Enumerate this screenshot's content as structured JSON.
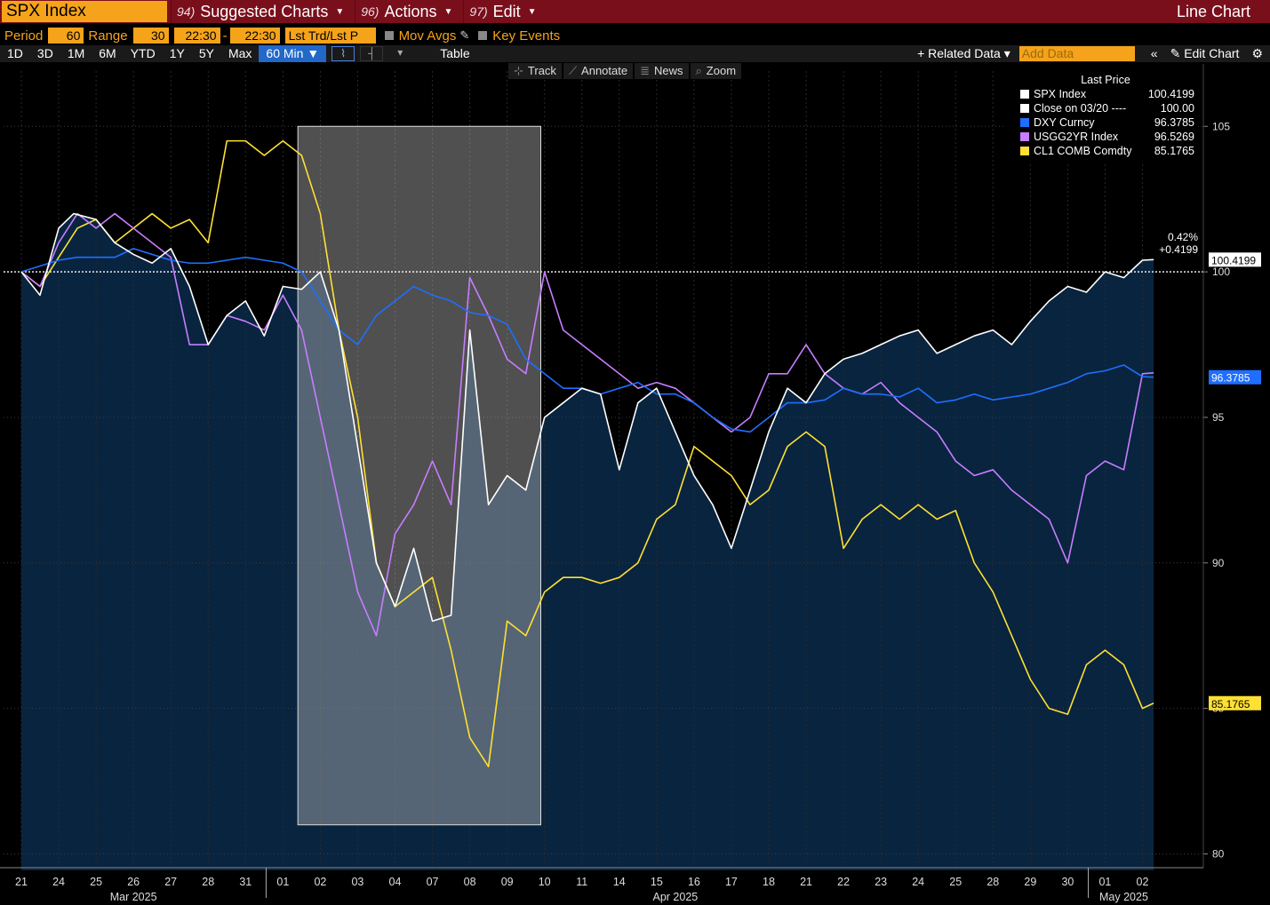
{
  "topbar": {
    "ticker": "SPX Index",
    "menus": [
      {
        "num": "94)",
        "label": "Suggested Charts"
      },
      {
        "num": "96)",
        "label": "Actions"
      },
      {
        "num": "97)",
        "label": "Edit"
      }
    ],
    "chart_type": "Line Chart"
  },
  "controls": {
    "period_label": "Period",
    "period_value": "60",
    "range_label": "Range",
    "range_value": "30",
    "time_from": "22:30",
    "time_to": "22:30",
    "price_mode": "Lst Trd/Lst P",
    "mov_avgs": "Mov Avgs",
    "key_events": "Key Events"
  },
  "ranges": [
    "1D",
    "3D",
    "1M",
    "6M",
    "YTD",
    "1Y",
    "5Y",
    "Max"
  ],
  "interval": "60 Min ▼",
  "table_label": "Table",
  "related_data": "+ Related Data ▾",
  "add_data_placeholder": "Add Data",
  "edit_chart": "Edit Chart",
  "tools": [
    {
      "icon": "crosshair-icon",
      "glyph": "⊹",
      "label": "Track"
    },
    {
      "icon": "annotate-icon",
      "glyph": "⟋",
      "label": "Annotate"
    },
    {
      "icon": "news-icon",
      "glyph": "≣",
      "label": "News"
    },
    {
      "icon": "zoom-icon",
      "glyph": "⌕",
      "label": "Zoom"
    }
  ],
  "legend": {
    "header": "Last Price",
    "items": [
      {
        "name": "SPX Index",
        "value": "100.4199",
        "color": "#ffffff"
      },
      {
        "name": "Close on 03/20 ---- ",
        "value": "100.00",
        "color": "#ffffff"
      },
      {
        "name": "DXY Curncy",
        "value": "96.3785",
        "color": "#1e6fff"
      },
      {
        "name": "USGG2YR Index",
        "value": "96.5269",
        "color": "#c77dff"
      },
      {
        "name": "CL1 COMB Comdty",
        "value": "85.1765",
        "color": "#ffe033"
      }
    ]
  },
  "change_labels": {
    "pct": "0.42%",
    "abs": "+0.4199"
  },
  "chart_data": {
    "type": "line",
    "ylim": [
      79.5,
      106.5
    ],
    "yticks": [
      80,
      85,
      90,
      95,
      100,
      105
    ],
    "reference_line": 100,
    "x_days": [
      "21",
      "24",
      "25",
      "26",
      "27",
      "28",
      "31",
      "01",
      "02",
      "03",
      "04",
      "07",
      "08",
      "09",
      "10",
      "11",
      "14",
      "15",
      "16",
      "17",
      "18",
      "21",
      "22",
      "23",
      "24",
      "25",
      "28",
      "29",
      "30",
      "01",
      "02"
    ],
    "months": [
      {
        "label": "Mar 2025",
        "day_index": 3
      },
      {
        "label": "Apr 2025",
        "day_index": 17.5
      },
      {
        "label": "May 2025",
        "day_index": 29.5
      }
    ],
    "highlight_days": [
      7.4,
      13.9
    ],
    "highlight_y": [
      81,
      105
    ],
    "last_labels": [
      {
        "value": "100.4199",
        "y": 100.42,
        "bg": "#ffffff",
        "fg": "#000000"
      },
      {
        "value": "96.3785",
        "y": 96.38,
        "bg": "#1e6fff",
        "fg": "#ffffff"
      },
      {
        "value": "85.1765",
        "y": 85.18,
        "bg": "#ffe033",
        "fg": "#000000"
      }
    ],
    "series": [
      {
        "name": "SPX Index",
        "color": "#ffffff",
        "fill": true,
        "x": [
          0,
          0.5,
          1,
          1.4,
          2,
          2.5,
          3,
          3.5,
          4,
          4.5,
          5,
          5.5,
          6,
          6.5,
          7,
          7.5,
          8,
          8.5,
          9,
          9.5,
          10,
          10.5,
          11,
          11.5,
          12,
          12.5,
          13,
          13.5,
          14,
          14.5,
          15,
          15.5,
          16,
          16.5,
          17,
          17.5,
          18,
          18.5,
          19,
          19.5,
          20,
          20.5,
          21,
          21.5,
          22,
          22.5,
          23,
          23.5,
          24,
          24.5,
          25,
          25.5,
          26,
          26.5,
          27,
          27.5,
          28,
          28.5,
          29,
          29.5,
          30,
          30.3
        ],
        "y": [
          100,
          99.2,
          101.5,
          102,
          101.8,
          101,
          100.6,
          100.3,
          100.8,
          99.5,
          97.5,
          98.5,
          99,
          97.8,
          99.5,
          99.4,
          100,
          98,
          94,
          90,
          88.5,
          90.5,
          88,
          88.2,
          98,
          92,
          93,
          92.5,
          95,
          95.5,
          96,
          95.8,
          93.2,
          95.5,
          96,
          94.5,
          93,
          92,
          90.5,
          92.5,
          94.5,
          96,
          95.5,
          96.5,
          97,
          97.2,
          97.5,
          97.8,
          98,
          97.2,
          97.5,
          97.8,
          98,
          97.5,
          98.3,
          99,
          99.5,
          99.3,
          100,
          99.8,
          100.4,
          100.42
        ]
      },
      {
        "name": "DXY Curncy",
        "color": "#1e6fff",
        "fill": false,
        "x": [
          0,
          0.5,
          1,
          1.5,
          2,
          2.5,
          3,
          3.5,
          4,
          4.5,
          5,
          5.5,
          6,
          6.5,
          7,
          7.5,
          8,
          8.5,
          9,
          9.5,
          10,
          10.5,
          11,
          11.5,
          12,
          12.5,
          13,
          13.5,
          14,
          14.5,
          15,
          15.5,
          16,
          16.5,
          17,
          17.5,
          18,
          18.5,
          19,
          19.5,
          20,
          20.5,
          21,
          21.5,
          22,
          22.5,
          23,
          23.5,
          24,
          24.5,
          25,
          25.5,
          26,
          26.5,
          27,
          27.5,
          28,
          28.5,
          29,
          29.5,
          30,
          30.3
        ],
        "y": [
          100,
          100.2,
          100.4,
          100.5,
          100.5,
          100.5,
          100.8,
          100.6,
          100.4,
          100.3,
          100.3,
          100.4,
          100.5,
          100.4,
          100.3,
          100,
          99,
          98,
          97.5,
          98.5,
          99,
          99.5,
          99.2,
          99,
          98.6,
          98.5,
          98.2,
          97,
          96.5,
          96,
          96,
          95.8,
          96,
          96.2,
          95.8,
          95.8,
          95.5,
          95,
          94.6,
          94.5,
          95,
          95.5,
          95.5,
          95.6,
          96,
          95.8,
          95.8,
          95.7,
          96,
          95.5,
          95.6,
          95.8,
          95.6,
          95.7,
          95.8,
          96,
          96.2,
          96.5,
          96.6,
          96.8,
          96.4,
          96.38
        ]
      },
      {
        "name": "USGG2YR Index",
        "color": "#c77dff",
        "fill": false,
        "x": [
          0,
          0.5,
          1,
          1.5,
          2,
          2.5,
          3,
          3.5,
          4,
          4.5,
          5,
          5.5,
          6,
          6.5,
          7,
          7.5,
          8,
          8.5,
          9,
          9.5,
          10,
          10.5,
          11,
          11.5,
          12,
          12.5,
          13,
          13.5,
          14,
          14.5,
          15,
          15.5,
          16,
          16.5,
          17,
          17.5,
          18,
          18.5,
          19,
          19.5,
          20,
          20.5,
          21,
          21.5,
          22,
          22.5,
          23,
          23.5,
          24,
          24.5,
          25,
          25.5,
          26,
          26.5,
          27,
          27.5,
          28,
          28.5,
          29,
          29.5,
          30,
          30.3
        ],
        "y": [
          100,
          99.5,
          101,
          102,
          101.5,
          102,
          101.5,
          101,
          100.5,
          97.5,
          97.5,
          98.5,
          98.3,
          98,
          99.2,
          98,
          95,
          92,
          89,
          87.5,
          91,
          92,
          93.5,
          92,
          99.8,
          98.5,
          97,
          96.5,
          100,
          98,
          97.5,
          97,
          96.5,
          96,
          96.2,
          96,
          95.5,
          95,
          94.5,
          95,
          96.5,
          96.5,
          97.5,
          96.5,
          96,
          95.8,
          96.2,
          95.5,
          95,
          94.5,
          93.5,
          93,
          93.2,
          92.5,
          92,
          91.5,
          90,
          93,
          93.5,
          93.2,
          96.5,
          96.53
        ]
      },
      {
        "name": "CL1 COMB Comdty",
        "color": "#ffe033",
        "fill": false,
        "x": [
          0,
          0.5,
          1,
          1.5,
          2,
          2.5,
          3,
          3.5,
          4,
          4.5,
          5,
          5.5,
          6,
          6.5,
          7,
          7.5,
          8,
          8.5,
          9,
          9.5,
          10,
          10.5,
          11,
          11.5,
          12,
          12.5,
          13,
          13.5,
          14,
          14.5,
          15,
          15.5,
          16,
          16.5,
          17,
          17.5,
          18,
          18.5,
          19,
          19.5,
          20,
          20.5,
          21,
          21.5,
          22,
          22.5,
          23,
          23.5,
          24,
          24.5,
          25,
          25.5,
          26,
          26.5,
          27,
          27.5,
          28,
          28.5,
          29,
          29.5,
          30,
          30.3
        ],
        "y": [
          100,
          99.5,
          100.5,
          101.5,
          101.8,
          101,
          101.5,
          102,
          101.5,
          101.8,
          101,
          104.5,
          104.5,
          104,
          104.5,
          104,
          102,
          98,
          95,
          90,
          88.5,
          89,
          89.5,
          87,
          84,
          83,
          88,
          87.5,
          89,
          89.5,
          89.5,
          89.3,
          89.5,
          90,
          91.5,
          92,
          94,
          93.5,
          93,
          92,
          92.5,
          94,
          94.5,
          94,
          90.5,
          91.5,
          92,
          91.5,
          92,
          91.5,
          91.8,
          90,
          89,
          87.5,
          86,
          85,
          84.8,
          86.5,
          87,
          86.5,
          85,
          85.18
        ]
      }
    ]
  }
}
